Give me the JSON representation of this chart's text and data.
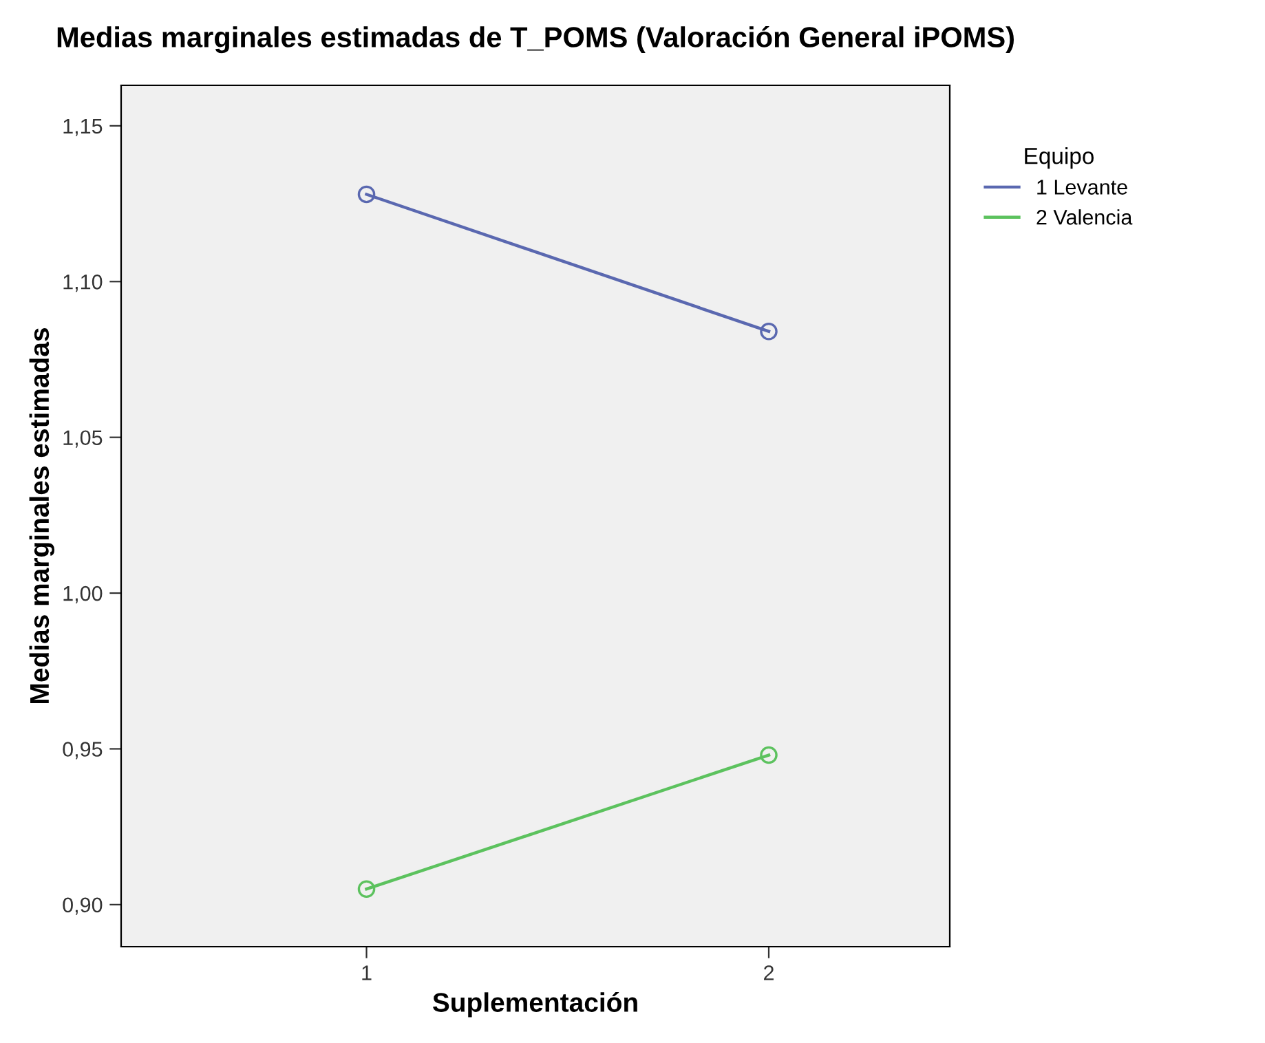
{
  "chart_data": {
    "type": "line",
    "title": "Medias marginales estimadas de T_POMS (Valoración General iPOMS)",
    "xlabel": "Suplementación",
    "ylabel": "Medias marginales estimadas",
    "legend_title": "Equipo",
    "categories": [
      "1",
      "2"
    ],
    "series": [
      {
        "name": "1 Levante",
        "color": "#5a68b0",
        "values": [
          1.128,
          1.084
        ]
      },
      {
        "name": "2 Valencia",
        "color": "#5cc25e",
        "values": [
          0.905,
          0.948
        ]
      }
    ],
    "ylim": [
      0.8865,
      1.163
    ],
    "yticks": [
      {
        "value": 0.9,
        "label": "0,90"
      },
      {
        "value": 0.95,
        "label": "0,95"
      },
      {
        "value": 1.0,
        "label": "1,00"
      },
      {
        "value": 1.05,
        "label": "1,05"
      },
      {
        "value": 1.1,
        "label": "1,10"
      },
      {
        "value": 1.15,
        "label": "1,15"
      }
    ],
    "grid": false,
    "legend": "top right",
    "marker": "circle",
    "line_style": "solid"
  }
}
